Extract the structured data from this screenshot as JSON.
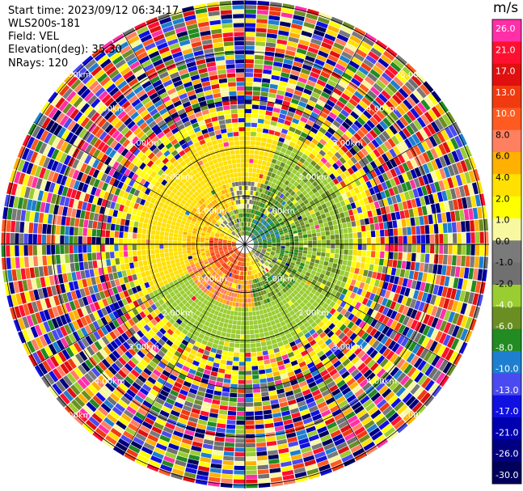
{
  "header": {
    "start_time": "Start time: 2023/09/12 06:34:17",
    "instrument": "WLS200s-181",
    "field": "Field: VEL",
    "elevation": "Elevation(deg): 35.30",
    "nrays": "NRays: 120"
  },
  "chart_data": {
    "type": "heatmap",
    "projection": "polar (PPI scan)",
    "field": "VEL",
    "unit": "m/s",
    "range_rings_labels": [
      "1.00km",
      "2.00km",
      "3.00km",
      "4.00km",
      "5.00km"
    ],
    "n_rays": 120,
    "elevation_deg": 35.3,
    "colorbar": {
      "unit": "m/s",
      "ticks": [
        "26.0",
        "21.0",
        "17.0",
        "13.0",
        "10.0",
        "8.0",
        "6.0",
        "4.0",
        "2.0",
        "1.0",
        "0.0",
        "-1.0",
        "-2.0",
        "-4.0",
        "-6.0",
        "-8.0",
        "-10.0",
        "-13.0",
        "-17.0",
        "-21.0",
        "-26.0",
        "-30.0"
      ],
      "colors": [
        "#ff2fa8",
        "#ff1030",
        "#e01010",
        "#f03a10",
        "#ff5a20",
        "#ff8060",
        "#ffb000",
        "#ffe000",
        "#ffff00",
        "#f8f8a0",
        "#7a7a7a",
        "#707070",
        "#9acd32",
        "#6b8e23",
        "#228b22",
        "#1e7fd0",
        "#4a4af0",
        "#1010e0",
        "#0000b0",
        "#000080",
        "#00005a"
      ]
    }
  }
}
